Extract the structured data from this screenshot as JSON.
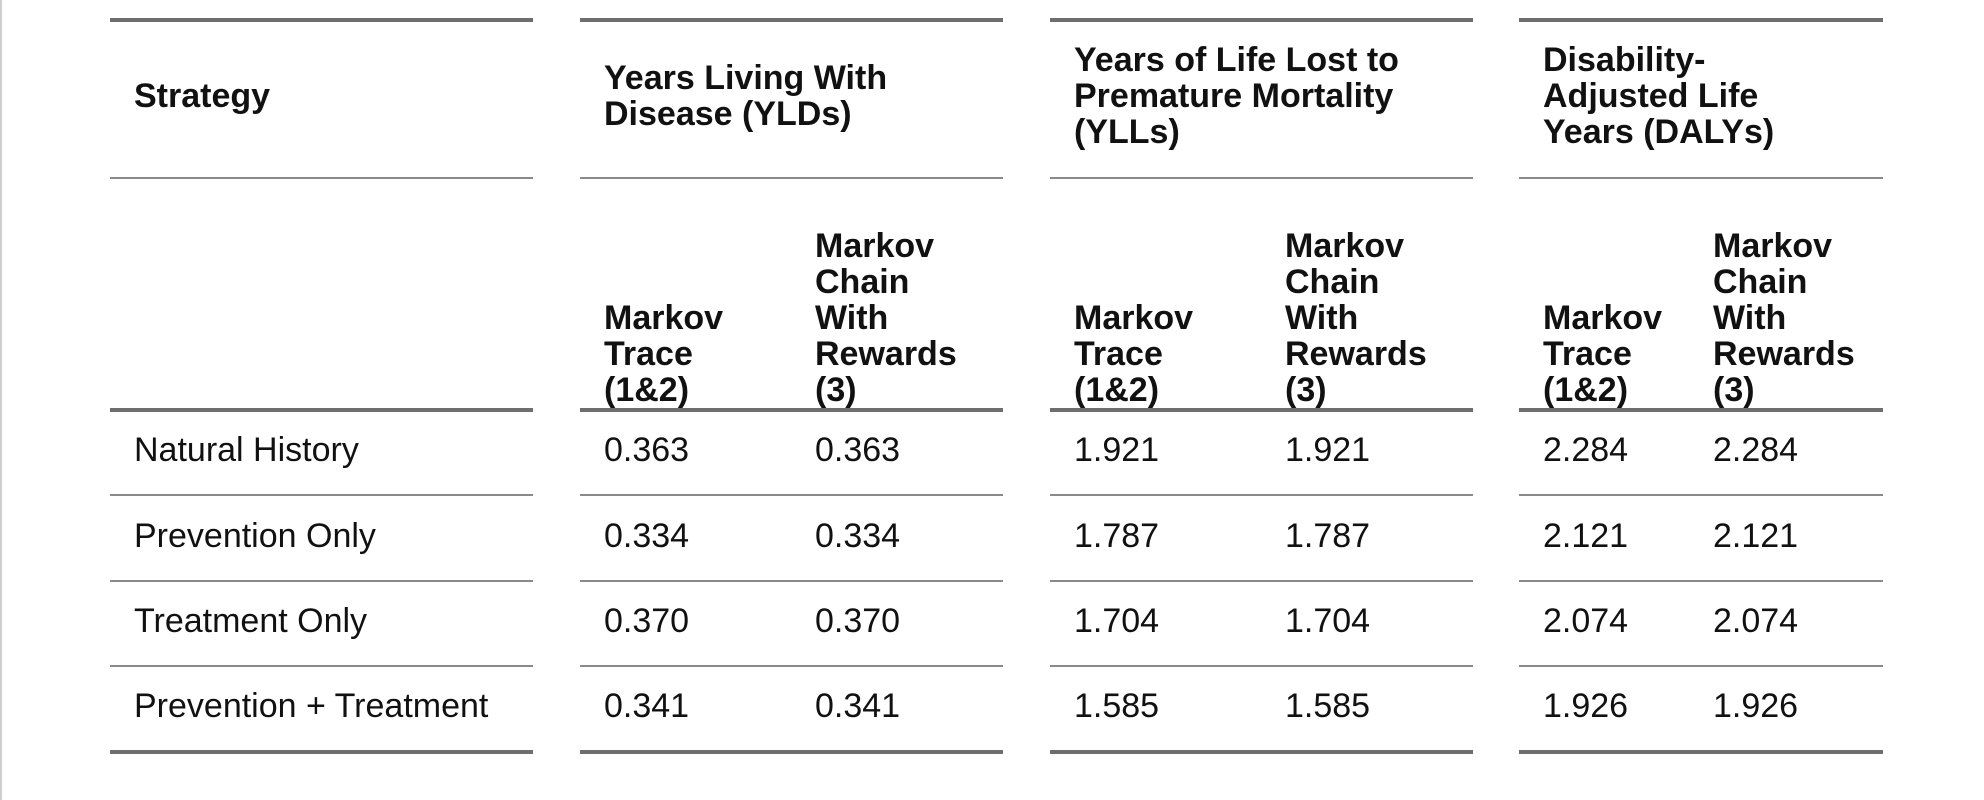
{
  "table": {
    "headers": {
      "strategy": "Strategy",
      "ylds": "Years Living With Disease (YLDs)",
      "ylls": "Years of Life Lost to Premature Mortality (YLLs)",
      "dalys": "Disability-Adjusted Life Years (DALYs)"
    },
    "subheaders": {
      "trace": "Markov Trace (1&2)",
      "chain": "Markov Chain With Rewards (3)"
    },
    "rows": [
      {
        "strategy": "Natural History",
        "yld_trace": "0.363",
        "yld_chain": "0.363",
        "yll_trace": "1.921",
        "yll_chain": "1.921",
        "daly_trace": "2.284",
        "daly_chain": "2.284"
      },
      {
        "strategy": "Prevention Only",
        "yld_trace": "0.334",
        "yld_chain": "0.334",
        "yll_trace": "1.787",
        "yll_chain": "1.787",
        "daly_trace": "2.121",
        "daly_chain": "2.121"
      },
      {
        "strategy": "Treatment Only",
        "yld_trace": "0.370",
        "yld_chain": "0.370",
        "yll_trace": "1.704",
        "yll_chain": "1.704",
        "daly_trace": "2.074",
        "daly_chain": "2.074"
      },
      {
        "strategy": "Prevention + Treatment",
        "yld_trace": "0.341",
        "yld_chain": "0.341",
        "yll_trace": "1.585",
        "yll_chain": "1.585",
        "daly_trace": "1.926",
        "daly_chain": "1.926"
      }
    ]
  }
}
